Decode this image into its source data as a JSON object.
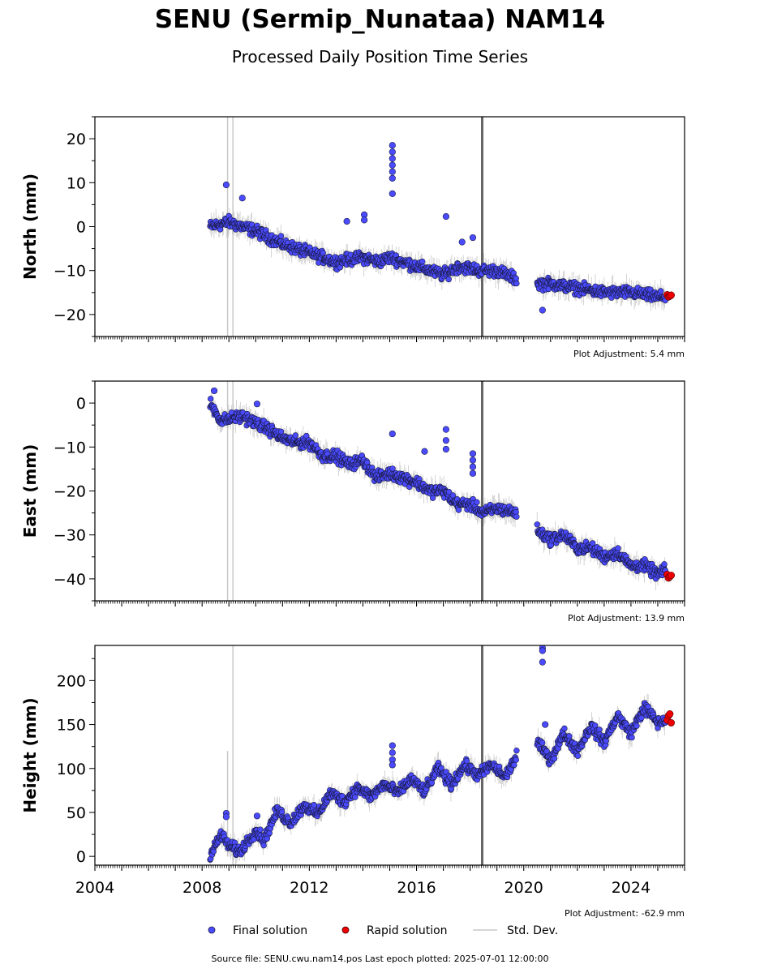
{
  "page": {
    "title": "SENU (Sermip_Nunataa) NAM14",
    "subtitle": "Processed Daily Position Time Series",
    "footer": "Source file: SENU.cwu.nam14.pos  Last epoch plotted: 2025-07-01 12:00:00"
  },
  "colors": {
    "final": "#4a4aff",
    "rapid": "#ee0000",
    "stddev": "#c8c8c8",
    "event_line": "#666666",
    "marker_edge": "#1a1a40"
  },
  "legend": {
    "final": "Final solution",
    "rapid": "Rapid solution",
    "stddev": "Std. Dev."
  },
  "chart_data": [
    {
      "type": "scatter",
      "ylabel": "North (mm)",
      "adjustment": "Plot Adjustment: 5.4 mm",
      "xlim": [
        2004,
        2026
      ],
      "ylim": [
        -25,
        25
      ],
      "yticks": [
        -20,
        -10,
        0,
        10,
        20
      ],
      "yticklabels": [
        "−20",
        "−10",
        "0",
        "10",
        "20"
      ],
      "event_lines": [
        2018.45
      ],
      "stddev_lines": [
        {
          "x": 2008.95,
          "y": [
            -25,
            25
          ]
        },
        {
          "x": 2009.15,
          "y": [
            -25,
            25
          ]
        }
      ],
      "series": [
        {
          "name": "Final solution",
          "segments": [
            {
              "x": [
                2008.3,
                2009.0,
                2010.0,
                2011.0,
                2012.0,
                2013.0,
                2014.0,
                2014.6,
                2015.0,
                2016.0,
                2017.0,
                2017.6,
                2018.4,
                2019.0,
                2019.75
              ],
              "y": [
                0,
                1,
                -1,
                -4,
                -6,
                -8,
                -7,
                -8,
                -7,
                -9,
                -11,
                -9,
                -10,
                -10,
                -12
              ]
            },
            {
              "x": [
                2020.5,
                2021.0,
                2022.0,
                2023.0,
                2024.0,
                2025.0,
                2025.3
              ],
              "y": [
                -13,
                -13,
                -14,
                -15,
                -15,
                -16,
                -16
              ]
            }
          ],
          "outliers": {
            "x": [
              2008.9,
              2009.5,
              2013.4,
              2014.05,
              2014.05,
              2015.1,
              2015.1,
              2015.1,
              2015.1,
              2015.1,
              2015.1,
              2015.1,
              2017.1,
              2017.7,
              2018.1,
              2020.7
            ],
            "y": [
              9.5,
              6.5,
              1.2,
              2.7,
              1.5,
              7.5,
              11,
              12.5,
              14,
              15.5,
              17,
              18.5,
              2.3,
              -3.5,
              -2.5,
              -19
            ]
          }
        },
        {
          "name": "Rapid solution",
          "x": [
            2025.35,
            2025.4,
            2025.45,
            2025.5
          ],
          "y": [
            -15.5,
            -16,
            -15.8,
            -15.6
          ]
        }
      ]
    },
    {
      "type": "scatter",
      "ylabel": "East (mm)",
      "adjustment": "Plot Adjustment: 13.9 mm",
      "xlim": [
        2004,
        2026
      ],
      "ylim": [
        -45,
        5
      ],
      "yticks": [
        -40,
        -30,
        -20,
        -10,
        0
      ],
      "yticklabels": [
        "−40",
        "−30",
        "−20",
        "−10",
        "0"
      ],
      "event_lines": [
        2018.45
      ],
      "stddev_lines": [
        {
          "x": 2008.95,
          "y": [
            -45,
            5
          ]
        },
        {
          "x": 2009.15,
          "y": [
            -45,
            5
          ]
        }
      ],
      "series": [
        {
          "name": "Final solution",
          "segments": [
            {
              "x": [
                2008.3,
                2008.7,
                2009.5,
                2010.5,
                2011.0,
                2011.5,
                2012.0,
                2012.5,
                2013.0,
                2013.5,
                2014.0,
                2014.5,
                2015.0,
                2015.5,
                2016.0,
                2016.5,
                2017.0,
                2017.5,
                2018.0,
                2018.5,
                2019.0,
                2019.75
              ],
              "y": [
                0,
                -4,
                -3,
                -6,
                -8,
                -9,
                -9,
                -12,
                -12,
                -14,
                -13,
                -17,
                -16,
                -17,
                -18,
                -20,
                -20,
                -23,
                -23,
                -25,
                -24,
                -25
              ]
            },
            {
              "x": [
                2020.5,
                2021.0,
                2021.5,
                2022.0,
                2022.5,
                2023.0,
                2023.5,
                2024.0,
                2024.5,
                2025.0,
                2025.3
              ],
              "y": [
                -29,
                -31,
                -30,
                -33,
                -33,
                -35,
                -34,
                -37,
                -37,
                -39,
                -38
              ]
            }
          ],
          "outliers": {
            "x": [
              2008.45,
              2010.05,
              2015.1,
              2016.3,
              2017.1,
              2017.1,
              2017.1,
              2018.1,
              2018.1,
              2018.1,
              2018.1
            ],
            "y": [
              2.8,
              -0.2,
              -7,
              -11,
              -6,
              -8.5,
              -10.5,
              -11.5,
              -13,
              -14.5,
              -16
            ]
          }
        },
        {
          "name": "Rapid solution",
          "x": [
            2025.35,
            2025.4,
            2025.45,
            2025.5
          ],
          "y": [
            -39,
            -39.8,
            -39.5,
            -39.2
          ]
        }
      ]
    },
    {
      "type": "scatter",
      "ylabel": "Height (mm)",
      "adjustment": "Plot Adjustment: -62.9 mm",
      "xlim": [
        2004,
        2026
      ],
      "ylim": [
        -10,
        240
      ],
      "yticks": [
        0,
        50,
        100,
        150,
        200
      ],
      "yticklabels": [
        "0",
        "50",
        "100",
        "150",
        "200"
      ],
      "xticks": [
        2004,
        2008,
        2012,
        2016,
        2020,
        2024
      ],
      "xticklabels": [
        "2004",
        "2008",
        "2012",
        "2016",
        "2020",
        "2024"
      ],
      "event_lines": [
        2018.45
      ],
      "stddev_lines": [
        {
          "x": 2008.95,
          "y": [
            0,
            120
          ]
        },
        {
          "x": 2009.15,
          "y": [
            -10,
            240
          ]
        }
      ],
      "series": [
        {
          "name": "Final solution",
          "segments": [
            {
              "x": [
                2008.3,
                2008.7,
                2009.0,
                2009.4,
                2010.0,
                2010.3,
                2010.8,
                2011.3,
                2011.8,
                2012.3,
                2012.8,
                2013.3,
                2013.8,
                2014.3,
                2014.8,
                2015.3,
                2015.8,
                2016.3,
                2016.8,
                2017.3,
                2017.8,
                2018.3,
                2018.8,
                2019.3,
                2019.75
              ],
              "y": [
                0,
                25,
                12,
                5,
                30,
                18,
                52,
                38,
                58,
                48,
                72,
                62,
                78,
                68,
                82,
                72,
                88,
                74,
                100,
                82,
                104,
                92,
                104,
                90,
                115
              ]
            },
            {
              "x": [
                2020.5,
                2021.0,
                2021.5,
                2022.0,
                2022.5,
                2023.0,
                2023.5,
                2024.0,
                2024.5,
                2025.0,
                2025.3
              ],
              "y": [
                130,
                110,
                140,
                120,
                148,
                130,
                160,
                140,
                170,
                152,
                155
              ]
            }
          ],
          "outliers": {
            "x": [
              2008.9,
              2008.9,
              2010.05,
              2015.1,
              2015.1,
              2015.1,
              2015.1,
              2020.7,
              2020.7,
              2020.7,
              2020.8
            ],
            "y": [
              49,
              45,
              46,
              126,
              118,
              110,
              104,
              237,
              234,
              221,
              150
            ]
          }
        },
        {
          "name": "Rapid solution",
          "x": [
            2025.35,
            2025.4,
            2025.45,
            2025.5
          ],
          "y": [
            155,
            160,
            162,
            152
          ]
        }
      ]
    }
  ]
}
